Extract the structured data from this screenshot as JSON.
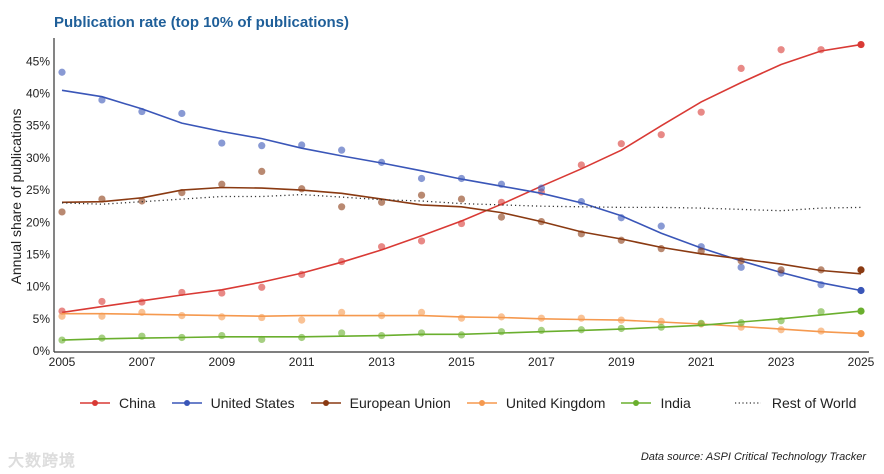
{
  "chart_data": {
    "type": "line",
    "title": "Publication rate (top 10% of publications)",
    "xlabel": "",
    "ylabel": "Annual share of publications",
    "x": [
      2005,
      2006,
      2007,
      2008,
      2009,
      2010,
      2011,
      2012,
      2013,
      2014,
      2015,
      2016,
      2017,
      2018,
      2019,
      2020,
      2021,
      2022,
      2023,
      2024,
      2025
    ],
    "xticks": [
      "2005",
      "2007",
      "2009",
      "2011",
      "2013",
      "2015",
      "2017",
      "2019",
      "2021",
      "2023",
      "2025"
    ],
    "yticks": [
      "0%",
      "5%",
      "10%",
      "15%",
      "20%",
      "25%",
      "30%",
      "35%",
      "40%",
      "45%"
    ],
    "ylim": [
      0,
      48
    ],
    "grid": false,
    "legend_position": "bottom",
    "series": [
      {
        "name": "China",
        "color": "#d93a35",
        "points": [
          6.2,
          7.7,
          7.6,
          9.1,
          9.0,
          9.9,
          11.9,
          13.9,
          16.2,
          17.1,
          19.8,
          23.1,
          24.7,
          28.9,
          32.2,
          33.6,
          37.1,
          43.9,
          46.8,
          46.8,
          47.6
        ],
        "trend": [
          6.0,
          6.9,
          7.8,
          8.7,
          9.5,
          10.7,
          12.1,
          13.8,
          15.7,
          17.9,
          20.2,
          22.8,
          25.6,
          28.3,
          31.2,
          35.0,
          38.7,
          41.7,
          44.5,
          46.6,
          47.6
        ]
      },
      {
        "name": "United States",
        "color": "#3a56b8",
        "points": [
          43.3,
          39.0,
          37.2,
          36.9,
          32.3,
          31.9,
          32.0,
          31.2,
          29.3,
          26.8,
          26.8,
          25.9,
          25.3,
          23.2,
          20.7,
          19.4,
          16.2,
          13.0,
          12.1,
          10.3,
          9.4
        ],
        "trend": [
          40.5,
          39.5,
          37.6,
          35.4,
          34.1,
          33.0,
          31.5,
          30.3,
          29.2,
          28.0,
          26.7,
          25.6,
          24.5,
          23.0,
          21.0,
          18.3,
          16.0,
          14.0,
          12.2,
          10.6,
          9.4
        ]
      },
      {
        "name": "European Union",
        "color": "#8a3a12",
        "points": [
          21.6,
          23.6,
          23.3,
          24.6,
          25.9,
          27.9,
          25.2,
          22.4,
          23.1,
          24.2,
          23.6,
          20.8,
          20.1,
          18.2,
          17.2,
          15.9,
          15.5,
          14.0,
          12.6,
          12.6,
          12.6
        ],
        "trend": [
          23.1,
          23.2,
          23.8,
          25.0,
          25.4,
          25.3,
          25.0,
          24.5,
          23.6,
          22.7,
          22.4,
          21.5,
          20.1,
          18.5,
          17.4,
          16.1,
          15.1,
          14.3,
          13.5,
          12.5,
          12.0
        ]
      },
      {
        "name": "United Kingdom",
        "color": "#f5994f",
        "points": [
          5.4,
          5.4,
          6.0,
          5.5,
          5.3,
          5.2,
          4.8,
          6.0,
          5.5,
          6.0,
          5.1,
          5.3,
          5.1,
          5.1,
          4.8,
          4.6,
          4.2,
          3.7,
          3.3,
          3.1,
          2.7
        ],
        "trend": [
          5.8,
          5.8,
          5.7,
          5.6,
          5.5,
          5.4,
          5.5,
          5.5,
          5.5,
          5.5,
          5.3,
          5.2,
          5.0,
          4.9,
          4.8,
          4.5,
          4.2,
          3.8,
          3.4,
          3.0,
          2.7
        ]
      },
      {
        "name": "India",
        "color": "#6aaf2e",
        "points": [
          1.7,
          2.0,
          2.3,
          2.1,
          2.4,
          1.8,
          2.1,
          2.8,
          2.4,
          2.8,
          2.5,
          3.0,
          3.2,
          3.3,
          3.5,
          3.7,
          4.3,
          4.4,
          4.7,
          6.1,
          6.2
        ],
        "trend": [
          1.7,
          1.9,
          2.0,
          2.1,
          2.2,
          2.2,
          2.2,
          2.3,
          2.4,
          2.6,
          2.6,
          2.8,
          3.0,
          3.2,
          3.4,
          3.7,
          4.0,
          4.5,
          5.0,
          5.6,
          6.2
        ]
      },
      {
        "name": "Rest of World",
        "color": "#333333",
        "dotted": true,
        "trend": [
          23.0,
          22.8,
          23.2,
          23.6,
          24.0,
          24.0,
          24.3,
          23.9,
          23.5,
          23.3,
          22.9,
          22.7,
          22.5,
          22.4,
          22.3,
          22.3,
          22.2,
          22.0,
          21.8,
          22.2,
          22.3
        ]
      }
    ]
  },
  "source": "Data source: ASPI Critical Technology Tracker",
  "watermark": "大数跨境"
}
